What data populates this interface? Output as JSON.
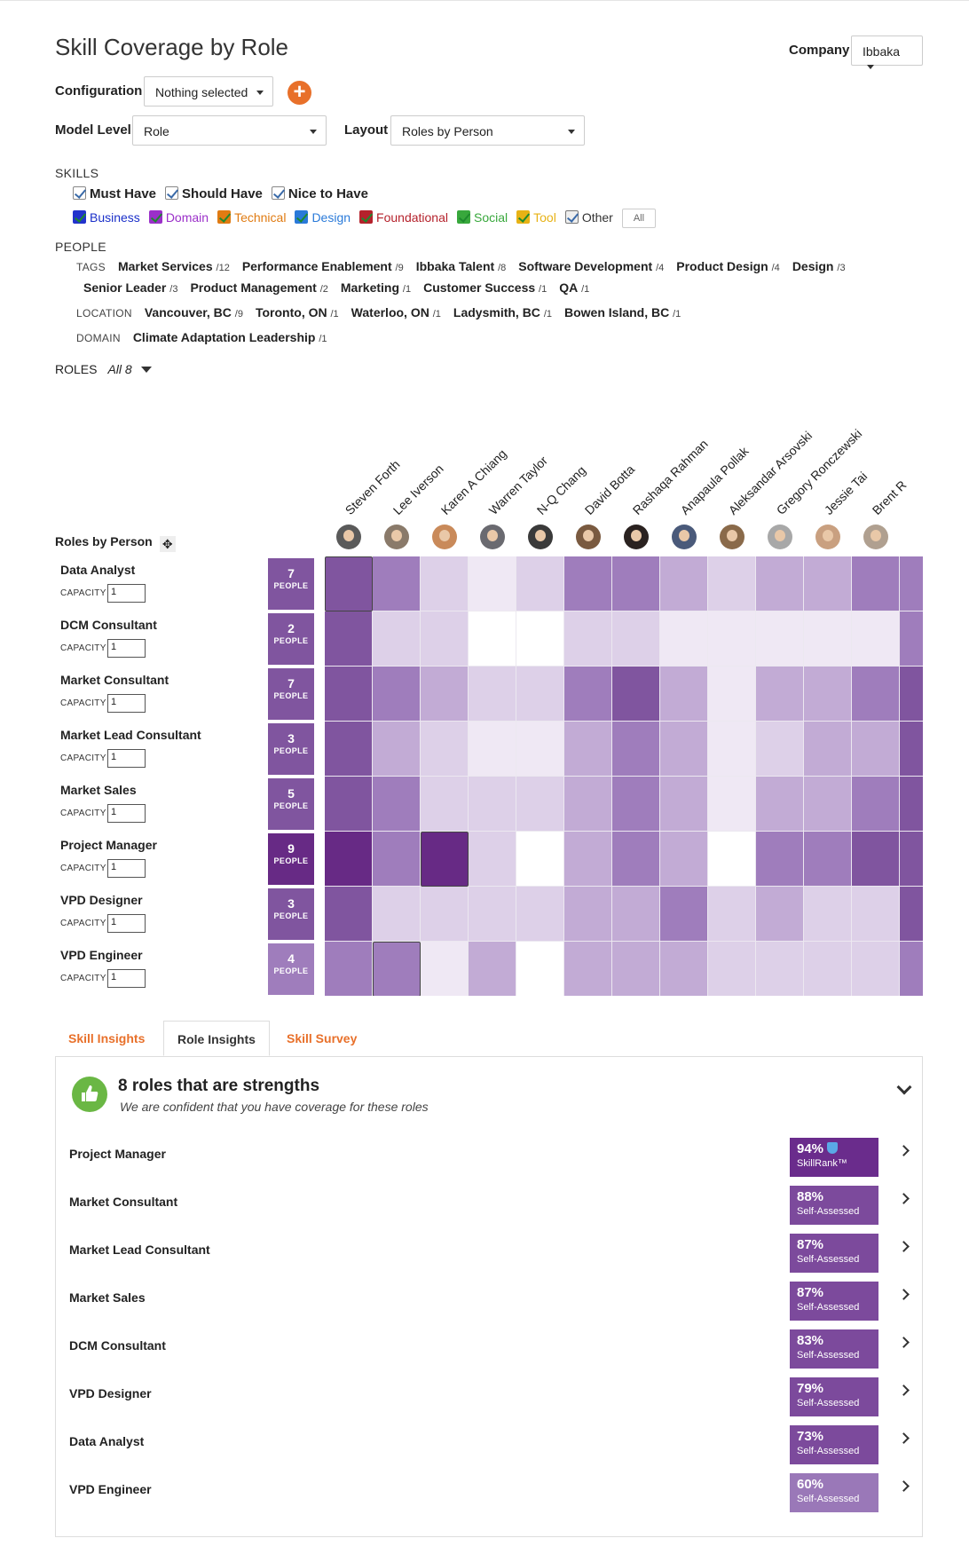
{
  "page": {
    "title": "Skill Coverage by Role",
    "company_label": "Company",
    "company_value": "Ibbaka"
  },
  "controls": {
    "configuration_label": "Configuration",
    "configuration_value": "Nothing selected",
    "model_level_label": "Model Level",
    "model_level_value": "Role",
    "layout_label": "Layout",
    "layout_value": "Roles by Person"
  },
  "skills": {
    "section_label": "SKILLS",
    "importance": [
      "Must Have",
      "Should Have",
      "Nice to Have"
    ],
    "types": [
      {
        "label": "Business",
        "color": "#1a2fc9",
        "box": "#2233cc"
      },
      {
        "label": "Domain",
        "color": "#9b30c9",
        "box": "#9b30c9"
      },
      {
        "label": "Technical",
        "color": "#e07b12",
        "box": "#e07b12"
      },
      {
        "label": "Design",
        "color": "#2a7ad9",
        "box": "#2a7ad9"
      },
      {
        "label": "Foundational",
        "color": "#b5222c",
        "box": "#b5222c"
      },
      {
        "label": "Social",
        "color": "#38a83c",
        "box": "#38a83c"
      },
      {
        "label": "Tool",
        "color": "#e7b215",
        "box": "#e7b215"
      },
      {
        "label": "Other",
        "color": "#333333",
        "box": "#777777"
      }
    ],
    "all_button": "All"
  },
  "people": {
    "section_label": "PEOPLE",
    "tags_label": "TAGS",
    "tags_row1": [
      {
        "name": "Market Services",
        "count": "/12"
      },
      {
        "name": "Performance Enablement",
        "count": "/9"
      },
      {
        "name": "Ibbaka Talent",
        "count": "/8"
      },
      {
        "name": "Software Development",
        "count": "/4"
      },
      {
        "name": "Product Design",
        "count": "/4"
      },
      {
        "name": "Design",
        "count": "/3"
      }
    ],
    "tags_row2": [
      {
        "name": "Senior Leader",
        "count": "/3"
      },
      {
        "name": "Product Management",
        "count": "/2"
      },
      {
        "name": "Marketing",
        "count": "/1"
      },
      {
        "name": "Customer Success",
        "count": "/1"
      },
      {
        "name": "QA",
        "count": "/1"
      }
    ],
    "location_label": "LOCATION",
    "locations": [
      {
        "name": "Vancouver, BC",
        "count": "/9"
      },
      {
        "name": "Toronto, ON",
        "count": "/1"
      },
      {
        "name": "Waterloo, ON",
        "count": "/1"
      },
      {
        "name": "Ladysmith, BC",
        "count": "/1"
      },
      {
        "name": "Bowen Island, BC",
        "count": "/1"
      }
    ],
    "domain_label": "DOMAIN",
    "domains": [
      {
        "name": "Climate Adaptation Leadership",
        "count": "/1"
      }
    ]
  },
  "roles_filter": {
    "label": "ROLES",
    "value": "All 8"
  },
  "matrix": {
    "header_label": "Roles by Person",
    "capacity_label": "CAPACITY",
    "people_word": "PEOPLE",
    "persons": [
      {
        "name": "Steven Forth",
        "avatar": "#5a5a5a"
      },
      {
        "name": "Lee Iverson",
        "avatar": "#8a7a6a"
      },
      {
        "name": "Karen A Chiang",
        "avatar": "#c98a5a"
      },
      {
        "name": "Warren Taylor",
        "avatar": "#6a6a70"
      },
      {
        "name": "N-Q Chang",
        "avatar": "#3a3a3a"
      },
      {
        "name": "David Botta",
        "avatar": "#7a5a40"
      },
      {
        "name": "Rashaqa Rahman",
        "avatar": "#2a2220"
      },
      {
        "name": "Anapaula Pollak",
        "avatar": "#4a5a7a"
      },
      {
        "name": "Aleksandar Arsovski",
        "avatar": "#8a6a4a"
      },
      {
        "name": "Gregory Ronczewski",
        "avatar": "#a8a8a8"
      },
      {
        "name": "Jessie Tai",
        "avatar": "#c9a080"
      },
      {
        "name": "Brent R",
        "avatar": "#b0a090"
      },
      {
        "name": "",
        "avatar": "#9a7a5a"
      }
    ],
    "roles": [
      {
        "name": "Data Analyst",
        "capacity": "1",
        "people": "7",
        "box_level": 5,
        "levels": [
          5,
          4,
          2,
          1,
          2,
          4,
          4,
          3,
          2,
          3,
          3,
          4,
          4
        ],
        "selected": [
          0
        ]
      },
      {
        "name": "DCM Consultant",
        "capacity": "1",
        "people": "2",
        "box_level": 5,
        "levels": [
          5,
          2,
          2,
          0,
          0,
          2,
          2,
          1,
          1,
          1,
          1,
          1,
          4
        ],
        "selected": []
      },
      {
        "name": "Market Consultant",
        "capacity": "1",
        "people": "7",
        "box_level": 5,
        "levels": [
          5,
          4,
          3,
          2,
          2,
          4,
          5,
          3,
          1,
          3,
          3,
          4,
          5
        ],
        "selected": []
      },
      {
        "name": "Market Lead Consultant",
        "capacity": "1",
        "people": "3",
        "box_level": 5,
        "levels": [
          5,
          3,
          2,
          1,
          1,
          3,
          4,
          3,
          1,
          2,
          3,
          3,
          5
        ],
        "selected": []
      },
      {
        "name": "Market Sales",
        "capacity": "1",
        "people": "5",
        "box_level": 5,
        "levels": [
          5,
          4,
          2,
          2,
          2,
          3,
          4,
          3,
          1,
          3,
          3,
          4,
          5
        ],
        "selected": []
      },
      {
        "name": "Project Manager",
        "capacity": "1",
        "people": "9",
        "box_level": 6,
        "levels": [
          6,
          4,
          6,
          2,
          0,
          3,
          4,
          3,
          0,
          4,
          4,
          5,
          5
        ],
        "selected": [
          2
        ]
      },
      {
        "name": "VPD Designer",
        "capacity": "1",
        "people": "3",
        "box_level": 5,
        "levels": [
          5,
          2,
          2,
          2,
          2,
          3,
          3,
          4,
          2,
          3,
          2,
          2,
          5
        ],
        "selected": []
      },
      {
        "name": "VPD Engineer",
        "capacity": "1",
        "people": "4",
        "box_level": 4,
        "levels": [
          4,
          4,
          1,
          3,
          0,
          3,
          3,
          3,
          2,
          2,
          2,
          2,
          4
        ],
        "selected": [
          1
        ]
      }
    ]
  },
  "tabs": {
    "skill_insights": "Skill Insights",
    "role_insights": "Role Insights",
    "skill_survey": "Skill Survey"
  },
  "insights": {
    "heading": "8 roles that are strengths",
    "subheading": "We are confident that you have coverage for these roles",
    "rows": [
      {
        "role": "Project Manager",
        "pct": "94%",
        "method": "SkillRank™",
        "color": "#6a2c8c",
        "verified": true
      },
      {
        "role": "Market Consultant",
        "pct": "88%",
        "method": "Self-Assessed",
        "color": "#7c4a9c",
        "verified": false
      },
      {
        "role": "Market Lead Consultant",
        "pct": "87%",
        "method": "Self-Assessed",
        "color": "#7c4a9c",
        "verified": false
      },
      {
        "role": "Market Sales",
        "pct": "87%",
        "method": "Self-Assessed",
        "color": "#7c4a9c",
        "verified": false
      },
      {
        "role": "DCM Consultant",
        "pct": "83%",
        "method": "Self-Assessed",
        "color": "#7c4a9c",
        "verified": false
      },
      {
        "role": "VPD Designer",
        "pct": "79%",
        "method": "Self-Assessed",
        "color": "#7c4a9c",
        "verified": false
      },
      {
        "role": "Data Analyst",
        "pct": "73%",
        "method": "Self-Assessed",
        "color": "#7c4a9c",
        "verified": false
      },
      {
        "role": "VPD Engineer",
        "pct": "60%",
        "method": "Self-Assessed",
        "color": "#9a78b8",
        "verified": false
      }
    ]
  }
}
